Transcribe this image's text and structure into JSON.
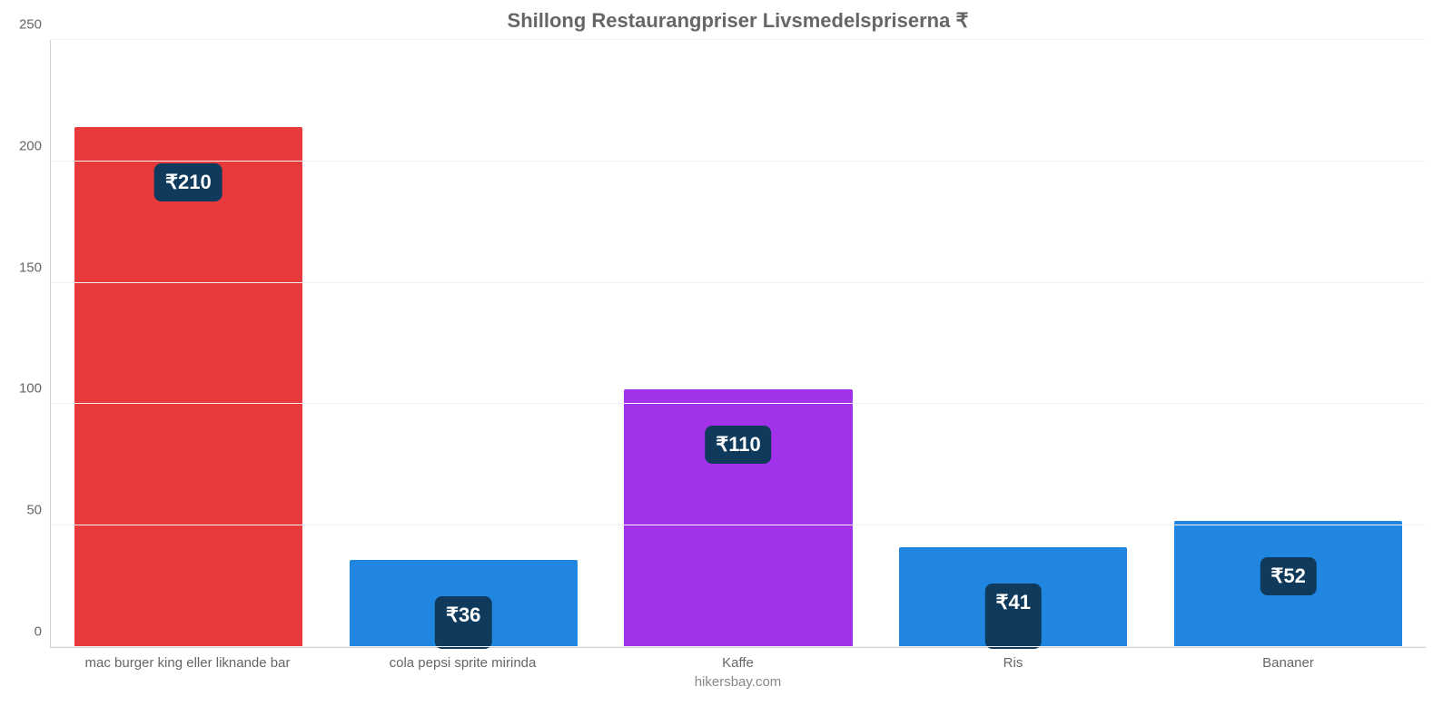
{
  "chart": {
    "type": "bar",
    "title": "Shillong Restaurangpriser Livsmedelspriserna ₹",
    "title_fontsize": 22,
    "title_color": "#666666",
    "credit": "hikersbay.com",
    "credit_color": "#888888",
    "background_color": "#ffffff",
    "axis_color": "#d0d0d0",
    "grid_color": "#f2f2f2",
    "tick_text_color": "#666666",
    "bar_width_pct": 83,
    "label_fontsize": 22,
    "label_bg_color": "#0f3a5b",
    "label_text_color": "#ffffff",
    "y_axis": {
      "min": 0,
      "max": 250,
      "ticks": [
        0,
        50,
        100,
        150,
        200,
        250
      ]
    },
    "bars": [
      {
        "category": "mac burger king eller liknande bar",
        "value": 214,
        "value_label": "₹210",
        "color": "#e8393c"
      },
      {
        "category": "cola pepsi sprite mirinda",
        "value": 36,
        "value_label": "₹36",
        "color": "#2086e0"
      },
      {
        "category": "Kaffe",
        "value": 106,
        "value_label": "₹110",
        "color": "#a333ea"
      },
      {
        "category": "Ris",
        "value": 41,
        "value_label": "₹41",
        "color": "#2086e0"
      },
      {
        "category": "Bananer",
        "value": 52,
        "value_label": "₹52",
        "color": "#2086e0"
      }
    ]
  }
}
